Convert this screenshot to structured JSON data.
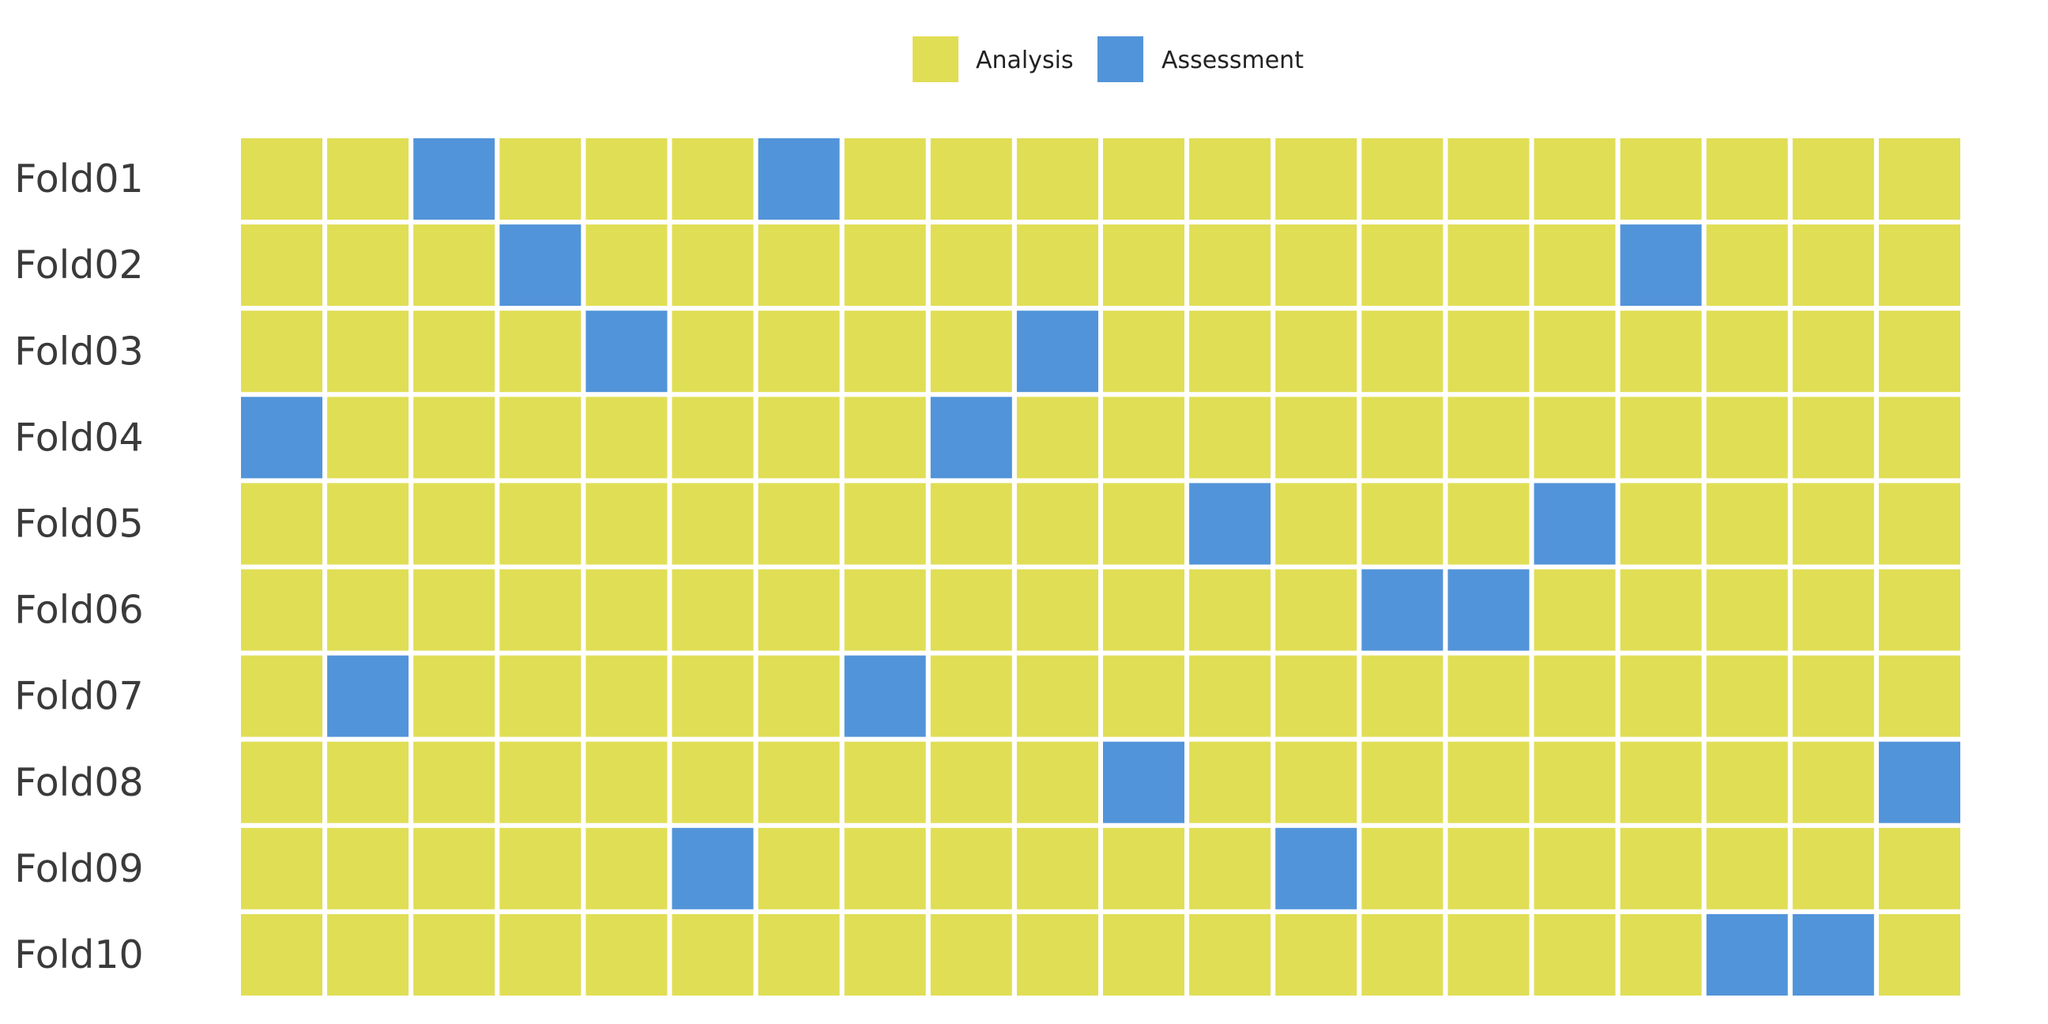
{
  "chart_data": {
    "type": "heatmap",
    "title": "",
    "xlabel": "",
    "ylabel": "",
    "grid": false,
    "legend_position": "top-center",
    "legend": [
      {
        "label": "Analysis",
        "color": "#E0DE55"
      },
      {
        "label": "Assessment",
        "color": "#5294D9"
      }
    ],
    "rows": [
      "Fold01",
      "Fold02",
      "Fold03",
      "Fold04",
      "Fold05",
      "Fold06",
      "Fold07",
      "Fold08",
      "Fold09",
      "Fold10"
    ],
    "columns": 20,
    "assessment_columns": {
      "Fold01": [
        3,
        7
      ],
      "Fold02": [
        4,
        17
      ],
      "Fold03": [
        5,
        10
      ],
      "Fold04": [
        1,
        9
      ],
      "Fold05": [
        12,
        16
      ],
      "Fold06": [
        14,
        15
      ],
      "Fold07": [
        2,
        8
      ],
      "Fold08": [
        11,
        20
      ],
      "Fold09": [
        6,
        13
      ],
      "Fold10": [
        18,
        19
      ]
    }
  }
}
